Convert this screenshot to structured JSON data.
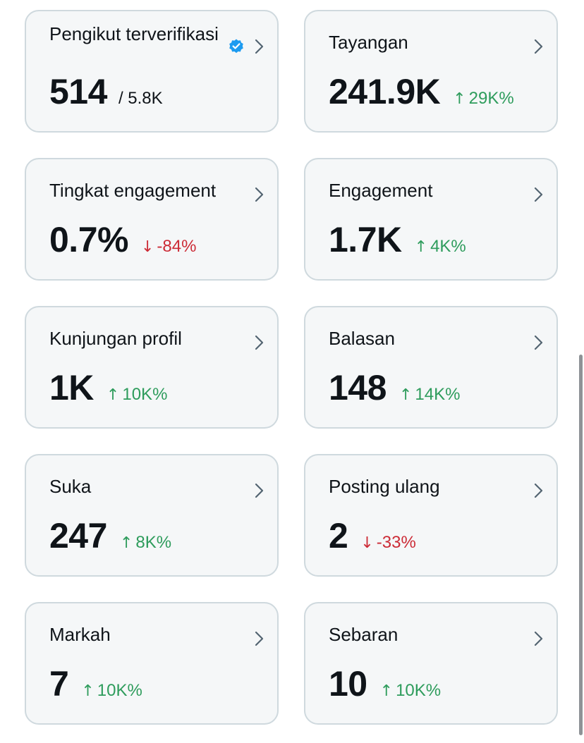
{
  "colors": {
    "up": "#2e9c5c",
    "down": "#cc2b36",
    "card_bg": "#f5f7f8",
    "border": "#cfd9de",
    "verified": "#1d9bf0"
  },
  "cards": [
    {
      "title": "Pengikut terverifikasi",
      "value": "514",
      "sub": "/ 5.8K",
      "verified_icon": "verified-badge-icon"
    },
    {
      "title": "Tayangan",
      "value": "241.9K",
      "delta_dir": "up",
      "delta_arrow": "↑",
      "delta": "29K%"
    },
    {
      "title": "Tingkat engagement",
      "value": "0.7%",
      "delta_dir": "down",
      "delta_arrow": "↓",
      "delta": "-84%"
    },
    {
      "title": "Engagement",
      "value": "1.7K",
      "delta_dir": "up",
      "delta_arrow": "↑",
      "delta": "4K%"
    },
    {
      "title": "Kunjungan profil",
      "value": "1K",
      "delta_dir": "up",
      "delta_arrow": "↑",
      "delta": "10K%"
    },
    {
      "title": "Balasan",
      "value": "148",
      "delta_dir": "up",
      "delta_arrow": "↑",
      "delta": "14K%"
    },
    {
      "title": "Suka",
      "value": "247",
      "delta_dir": "up",
      "delta_arrow": "↑",
      "delta": "8K%"
    },
    {
      "title": "Posting ulang",
      "value": "2",
      "delta_dir": "down",
      "delta_arrow": "↓",
      "delta": "-33%"
    },
    {
      "title": "Markah",
      "value": "7",
      "delta_dir": "up",
      "delta_arrow": "↑",
      "delta": "10K%"
    },
    {
      "title": "Sebaran",
      "value": "10",
      "delta_dir": "up",
      "delta_arrow": "↑",
      "delta": "10K%"
    }
  ]
}
